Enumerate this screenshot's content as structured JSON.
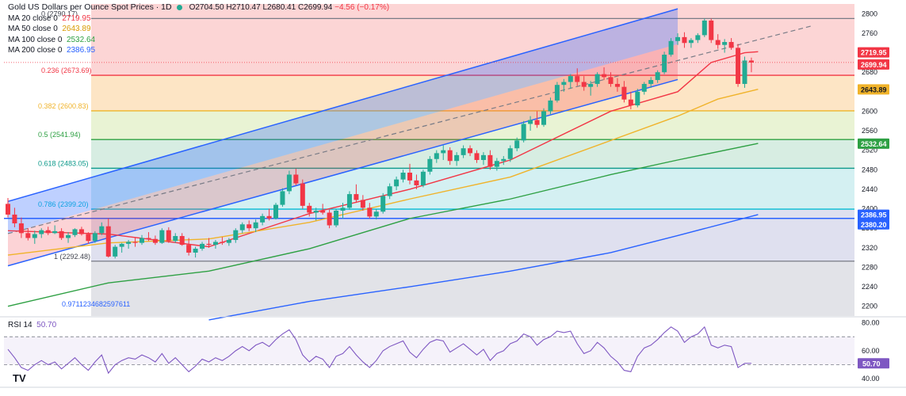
{
  "header": {
    "title": "Gold US Dollars per Ounce Spot Prices · 1D",
    "open": "O2704.50",
    "high": "H2710.47",
    "low": "L2680.41",
    "close": "C2699.94",
    "change": "−4.56 (−0.17%)",
    "ma": [
      {
        "label": "MA 20 close 0",
        "value": "2719.95",
        "color": "#f23645"
      },
      {
        "label": "MA 50 close 0",
        "value": "2643.89",
        "color": "#f0b32a"
      },
      {
        "label": "MA 100 close 0",
        "value": "2532.64",
        "color": "#2ea043"
      },
      {
        "label": "MA 200 close 0",
        "value": "2386.95",
        "color": "#2962ff"
      }
    ]
  },
  "rsi_legend": {
    "label": "RSI 14",
    "value": "50.70"
  },
  "logo_text": "TV",
  "colors": {
    "up": "#22ab94",
    "down": "#f23645",
    "channel": "#2962ff",
    "ma20": "#f23645",
    "ma50": "#f0b32a",
    "ma100": "#2ea043",
    "ma200": "#2962ff",
    "rsi": "#7e57c2"
  },
  "chart_data": {
    "type": "line",
    "price_axis": {
      "ylim": [
        2180,
        2820
      ],
      "ticks": [
        2200,
        2240,
        2280,
        2320,
        2360,
        2400,
        2440,
        2480,
        2520,
        2560,
        2600,
        2640,
        2680,
        2720,
        2760,
        2800
      ]
    },
    "fibonacci": [
      {
        "ratio": "0",
        "price": 2790.17,
        "label": "0 (2790.17)",
        "color": "#787b86",
        "fill": "#fcd5d5"
      },
      {
        "ratio": "0.236",
        "price": 2673.69,
        "label": "0.236 (2673.69)",
        "color": "#f23645",
        "fill": "#fde5c5"
      },
      {
        "ratio": "0.382",
        "price": 2600.83,
        "label": "0.382 (2600.83)",
        "color": "#f0b32a",
        "fill": "#e9f3d4"
      },
      {
        "ratio": "0.5",
        "price": 2541.94,
        "label": "0.5 (2541.94)",
        "color": "#2ea043",
        "fill": "#d7ede2"
      },
      {
        "ratio": "0.618",
        "price": 2483.05,
        "label": "0.618 (2483.05)",
        "color": "#0c998a",
        "fill": "#d4f0f2"
      },
      {
        "ratio": "0.786",
        "price": 2399.2,
        "label": "0.786 (2399.20)",
        "color": "#00bcd4",
        "fill": "#dfe0ef"
      },
      {
        "ratio": "1",
        "price": 2292.48,
        "label": "1 (2292.48)",
        "color": "#787b86",
        "fill": "#e2e3e8"
      },
      {
        "ratio": "0.97",
        "price": 2170,
        "label": "0.9711234682597611",
        "color": "#2962ff",
        "fill": "#c9d7fb"
      }
    ],
    "horizontal_level": {
      "price": 2380.2,
      "label": "2380.20",
      "color": "#2962ff"
    },
    "price_labels": [
      {
        "price": 2719.95,
        "label": "2719.95",
        "color": "#f23645",
        "text_color": "#ffffff"
      },
      {
        "price": 2699.94,
        "label": "2699.94",
        "color": "#f23645",
        "text_color": "#ffffff"
      },
      {
        "price": 2643.89,
        "label": "2643.89",
        "color": "#f0b32a",
        "text_color": "#131722"
      },
      {
        "price": 2532.64,
        "label": "2532.64",
        "color": "#2ea043",
        "text_color": "#ffffff"
      },
      {
        "price": 2386.95,
        "label": "2386.95",
        "color": "#2962ff",
        "text_color": "#ffffff"
      },
      {
        "price": 2380.2,
        "label": "2380.20",
        "color": "#2962ff",
        "text_color": "#ffffff"
      }
    ],
    "channel": {
      "lower": [
        [
          0,
          2283
        ],
        [
          100,
          2665
        ]
      ],
      "upper": [
        [
          0,
          2415
        ],
        [
          100,
          2810
        ]
      ],
      "mid_extension": [
        [
          100,
          2735
        ],
        [
          120,
          2775
        ]
      ]
    },
    "ohlc": [
      [
        2410,
        2422,
        2382,
        2388
      ],
      [
        2388,
        2402,
        2362,
        2370
      ],
      [
        2370,
        2382,
        2340,
        2350
      ],
      [
        2350,
        2360,
        2335,
        2340
      ],
      [
        2340,
        2355,
        2328,
        2348
      ],
      [
        2348,
        2360,
        2340,
        2356
      ],
      [
        2356,
        2363,
        2346,
        2350
      ],
      [
        2350,
        2366,
        2348,
        2354
      ],
      [
        2354,
        2360,
        2336,
        2340
      ],
      [
        2340,
        2352,
        2330,
        2346
      ],
      [
        2346,
        2360,
        2342,
        2358
      ],
      [
        2358,
        2363,
        2345,
        2348
      ],
      [
        2348,
        2352,
        2328,
        2334
      ],
      [
        2334,
        2354,
        2330,
        2350
      ],
      [
        2350,
        2372,
        2346,
        2364
      ],
      [
        2364,
        2380,
        2300,
        2302
      ],
      [
        2302,
        2326,
        2298,
        2322
      ],
      [
        2322,
        2330,
        2310,
        2328
      ],
      [
        2328,
        2336,
        2318,
        2332
      ],
      [
        2332,
        2340,
        2322,
        2330
      ],
      [
        2330,
        2346,
        2326,
        2340
      ],
      [
        2340,
        2352,
        2334,
        2338
      ],
      [
        2338,
        2345,
        2326,
        2330
      ],
      [
        2330,
        2360,
        2328,
        2356
      ],
      [
        2356,
        2362,
        2330,
        2334
      ],
      [
        2334,
        2350,
        2330,
        2344
      ],
      [
        2344,
        2350,
        2324,
        2326
      ],
      [
        2326,
        2340,
        2304,
        2310
      ],
      [
        2310,
        2322,
        2300,
        2318
      ],
      [
        2318,
        2332,
        2314,
        2328
      ],
      [
        2328,
        2340,
        2320,
        2326
      ],
      [
        2326,
        2336,
        2318,
        2332
      ],
      [
        2332,
        2342,
        2326,
        2330
      ],
      [
        2330,
        2340,
        2324,
        2336
      ],
      [
        2336,
        2360,
        2330,
        2356
      ],
      [
        2356,
        2372,
        2350,
        2368
      ],
      [
        2368,
        2376,
        2354,
        2360
      ],
      [
        2360,
        2378,
        2352,
        2372
      ],
      [
        2372,
        2390,
        2366,
        2385
      ],
      [
        2385,
        2400,
        2376,
        2380
      ],
      [
        2380,
        2412,
        2378,
        2408
      ],
      [
        2408,
        2442,
        2404,
        2436
      ],
      [
        2436,
        2478,
        2430,
        2470
      ],
      [
        2470,
        2482,
        2448,
        2452
      ],
      [
        2452,
        2460,
        2400,
        2406
      ],
      [
        2406,
        2412,
        2384,
        2392
      ],
      [
        2392,
        2402,
        2376,
        2396
      ],
      [
        2396,
        2410,
        2388,
        2392
      ],
      [
        2392,
        2398,
        2360,
        2366
      ],
      [
        2366,
        2400,
        2362,
        2396
      ],
      [
        2396,
        2412,
        2380,
        2402
      ],
      [
        2402,
        2436,
        2398,
        2430
      ],
      [
        2430,
        2450,
        2412,
        2418
      ],
      [
        2418,
        2428,
        2396,
        2402
      ],
      [
        2402,
        2412,
        2380,
        2384
      ],
      [
        2384,
        2400,
        2378,
        2394
      ],
      [
        2394,
        2432,
        2390,
        2426
      ],
      [
        2426,
        2452,
        2420,
        2446
      ],
      [
        2446,
        2466,
        2438,
        2460
      ],
      [
        2460,
        2480,
        2454,
        2474
      ],
      [
        2474,
        2492,
        2450,
        2458
      ],
      [
        2458,
        2470,
        2440,
        2448
      ],
      [
        2448,
        2480,
        2444,
        2476
      ],
      [
        2476,
        2508,
        2470,
        2502
      ],
      [
        2502,
        2520,
        2494,
        2514
      ],
      [
        2514,
        2530,
        2500,
        2520
      ],
      [
        2520,
        2526,
        2490,
        2498
      ],
      [
        2498,
        2516,
        2488,
        2510
      ],
      [
        2510,
        2530,
        2504,
        2524
      ],
      [
        2524,
        2530,
        2508,
        2514
      ],
      [
        2514,
        2520,
        2494,
        2500
      ],
      [
        2500,
        2516,
        2490,
        2510
      ],
      [
        2510,
        2520,
        2480,
        2486
      ],
      [
        2486,
        2504,
        2478,
        2498
      ],
      [
        2498,
        2508,
        2490,
        2502
      ],
      [
        2502,
        2530,
        2496,
        2524
      ],
      [
        2524,
        2546,
        2518,
        2540
      ],
      [
        2540,
        2580,
        2536,
        2574
      ],
      [
        2574,
        2590,
        2560,
        2582
      ],
      [
        2582,
        2600,
        2566,
        2572
      ],
      [
        2572,
        2606,
        2568,
        2600
      ],
      [
        2600,
        2628,
        2594,
        2622
      ],
      [
        2622,
        2660,
        2618,
        2654
      ],
      [
        2654,
        2666,
        2640,
        2660
      ],
      [
        2660,
        2676,
        2646,
        2672
      ],
      [
        2672,
        2688,
        2652,
        2660
      ],
      [
        2660,
        2672,
        2642,
        2650
      ],
      [
        2650,
        2662,
        2632,
        2656
      ],
      [
        2656,
        2680,
        2650,
        2676
      ],
      [
        2676,
        2690,
        2664,
        2670
      ],
      [
        2670,
        2680,
        2650,
        2656
      ],
      [
        2656,
        2668,
        2640,
        2650
      ],
      [
        2650,
        2662,
        2618,
        2624
      ],
      [
        2624,
        2640,
        2604,
        2612
      ],
      [
        2612,
        2646,
        2608,
        2640
      ],
      [
        2640,
        2660,
        2634,
        2656
      ],
      [
        2656,
        2670,
        2648,
        2664
      ],
      [
        2664,
        2684,
        2658,
        2680
      ],
      [
        2680,
        2722,
        2676,
        2716
      ],
      [
        2716,
        2750,
        2712,
        2744
      ],
      [
        2744,
        2760,
        2736,
        2752
      ],
      [
        2752,
        2762,
        2730,
        2740
      ],
      [
        2740,
        2750,
        2730,
        2746
      ],
      [
        2746,
        2760,
        2740,
        2756
      ],
      [
        2756,
        2790,
        2752,
        2786
      ],
      [
        2786,
        2790,
        2740,
        2746
      ],
      [
        2746,
        2758,
        2728,
        2736
      ],
      [
        2736,
        2748,
        2720,
        2742
      ],
      [
        2742,
        2750,
        2726,
        2730
      ],
      [
        2730,
        2738,
        2650,
        2656
      ],
      [
        2656,
        2712,
        2648,
        2704
      ],
      [
        2704,
        2710,
        2680,
        2700
      ]
    ],
    "moving_averages": [
      {
        "name": "MA 20",
        "color": "#f23645",
        "values": [
          [
            0,
            2355
          ],
          [
            15,
            2348
          ],
          [
            30,
            2322
          ],
          [
            45,
            2390
          ],
          [
            60,
            2440
          ],
          [
            75,
            2500
          ],
          [
            90,
            2600
          ],
          [
            100,
            2640
          ],
          [
            105,
            2700
          ],
          [
            110,
            2720
          ],
          [
            112,
            2722
          ]
        ]
      },
      {
        "name": "MA 50",
        "color": "#f0b32a",
        "values": [
          [
            0,
            2305
          ],
          [
            15,
            2330
          ],
          [
            30,
            2338
          ],
          [
            45,
            2372
          ],
          [
            60,
            2420
          ],
          [
            75,
            2465
          ],
          [
            90,
            2540
          ],
          [
            100,
            2590
          ],
          [
            106,
            2625
          ],
          [
            112,
            2645
          ]
        ]
      },
      {
        "name": "MA 100",
        "color": "#2ea043",
        "values": [
          [
            0,
            2200
          ],
          [
            15,
            2248
          ],
          [
            30,
            2272
          ],
          [
            45,
            2318
          ],
          [
            60,
            2380
          ],
          [
            75,
            2420
          ],
          [
            90,
            2470
          ],
          [
            100,
            2500
          ],
          [
            112,
            2534
          ]
        ]
      },
      {
        "name": "MA 200",
        "color": "#2962ff",
        "values": [
          [
            30,
            2172
          ],
          [
            45,
            2210
          ],
          [
            60,
            2240
          ],
          [
            75,
            2272
          ],
          [
            90,
            2310
          ],
          [
            100,
            2345
          ],
          [
            112,
            2388
          ]
        ]
      }
    ],
    "rsi": {
      "name": "RSI 14",
      "ylim": [
        35,
        82
      ],
      "ticks": [
        40,
        60,
        80
      ],
      "bands": [
        70,
        50
      ],
      "last": 50.7,
      "values": [
        61,
        55,
        48,
        46,
        50,
        53,
        50,
        52,
        47,
        51,
        55,
        50,
        46,
        52,
        57,
        44,
        50,
        53,
        55,
        54,
        57,
        55,
        52,
        58,
        51,
        55,
        50,
        45,
        49,
        54,
        52,
        55,
        53,
        56,
        60,
        63,
        60,
        64,
        66,
        63,
        68,
        72,
        75,
        68,
        57,
        52,
        56,
        54,
        48,
        56,
        58,
        63,
        57,
        52,
        48,
        53,
        60,
        63,
        65,
        67,
        59,
        55,
        61,
        66,
        68,
        67,
        59,
        62,
        65,
        61,
        57,
        61,
        53,
        58,
        60,
        65,
        67,
        72,
        70,
        64,
        68,
        70,
        74,
        73,
        74,
        65,
        58,
        60,
        66,
        62,
        56,
        52,
        46,
        45,
        56,
        62,
        64,
        68,
        73,
        77,
        74,
        66,
        70,
        72,
        77,
        64,
        62,
        64,
        63,
        48,
        51,
        51
      ]
    }
  }
}
